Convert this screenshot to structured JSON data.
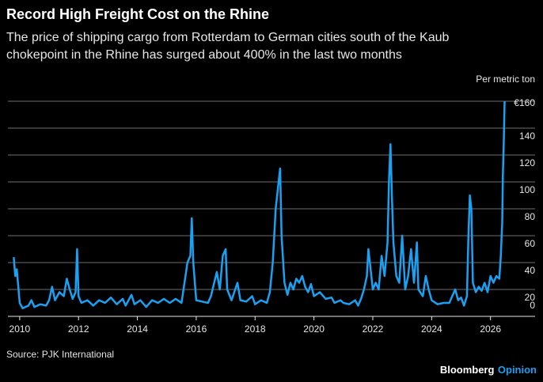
{
  "chart_data": {
    "type": "line",
    "title": "Record High Freight Cost on the Rhine",
    "subtitle": [
      "The price of shipping cargo from Rotterdam to German cities south of the Kaub",
      "chokepoint in the Rhine has surged about 400% in the last two months"
    ],
    "y_label": "Per metric ton",
    "source": "Source: PJK International",
    "brand": "Bloomberg",
    "brand_suffix": "Opinion",
    "color": "#1ba1f2",
    "grid": true,
    "xlim": [
      2009.6,
      2027.3
    ],
    "xticks": [
      2010,
      2012,
      2014,
      2016,
      2018,
      2020,
      2022,
      2024,
      2026
    ],
    "ylim": [
      0,
      160
    ],
    "yticks": [
      0,
      20,
      40,
      60,
      80,
      100,
      120,
      140,
      {
        "value": 160,
        "label": "€160"
      }
    ],
    "x": [
      2009.8,
      2009.85,
      2009.9,
      2010.0,
      2010.1,
      2010.3,
      2010.4,
      2010.5,
      2010.7,
      2010.9,
      2011.0,
      2011.1,
      2011.2,
      2011.35,
      2011.5,
      2011.6,
      2011.7,
      2011.8,
      2011.9,
      2011.95,
      2012.0,
      2012.1,
      2012.3,
      2012.5,
      2012.7,
      2012.9,
      2013.1,
      2013.3,
      2013.5,
      2013.6,
      2013.8,
      2013.9,
      2014.1,
      2014.3,
      2014.5,
      2014.7,
      2014.9,
      2015.1,
      2015.3,
      2015.5,
      2015.6,
      2015.7,
      2015.8,
      2015.85,
      2015.9,
      2016.0,
      2016.2,
      2016.4,
      2016.5,
      2016.7,
      2016.8,
      2016.9,
      2017.0,
      2017.05,
      2017.2,
      2017.4,
      2017.5,
      2017.7,
      2017.9,
      2018.0,
      2018.2,
      2018.4,
      2018.5,
      2018.6,
      2018.7,
      2018.8,
      2018.85,
      2018.9,
      2019.0,
      2019.1,
      2019.2,
      2019.3,
      2019.4,
      2019.5,
      2019.6,
      2019.7,
      2019.8,
      2019.9,
      2020.0,
      2020.2,
      2020.4,
      2020.6,
      2020.7,
      2020.9,
      2021.0,
      2021.2,
      2021.4,
      2021.5,
      2021.6,
      2021.7,
      2021.8,
      2021.85,
      2021.9,
      2022.0,
      2022.1,
      2022.2,
      2022.3,
      2022.4,
      2022.5,
      2022.55,
      2022.6,
      2022.65,
      2022.7,
      2022.8,
      2022.9,
      2023.0,
      2023.05,
      2023.1,
      2023.2,
      2023.3,
      2023.4,
      2023.5,
      2023.55,
      2023.7,
      2023.8,
      2023.9,
      2024.0,
      2024.2,
      2024.4,
      2024.6,
      2024.7,
      2024.8,
      2024.9,
      2025.0,
      2025.1,
      2025.2,
      2025.25,
      2025.3,
      2025.35,
      2025.4,
      2025.5,
      2025.6,
      2025.7,
      2025.8,
      2025.9,
      2026.0,
      2026.1,
      2026.2,
      2026.3,
      2026.35,
      2026.4,
      2026.42,
      2026.45,
      2026.48
    ],
    "values": [
      44,
      30,
      35,
      10,
      6,
      8,
      12,
      7,
      9,
      8,
      12,
      22,
      12,
      18,
      15,
      28,
      20,
      13,
      18,
      50,
      15,
      10,
      12,
      8,
      12,
      10,
      14,
      9,
      13,
      8,
      16,
      9,
      12,
      7,
      12,
      10,
      13,
      10,
      13,
      10,
      25,
      40,
      45,
      73,
      40,
      12,
      11,
      10,
      15,
      33,
      20,
      45,
      50,
      20,
      12,
      25,
      12,
      11,
      15,
      9,
      12,
      10,
      18,
      40,
      80,
      100,
      110,
      60,
      25,
      16,
      25,
      20,
      28,
      25,
      30,
      22,
      18,
      24,
      15,
      18,
      13,
      14,
      10,
      12,
      10,
      9,
      12,
      8,
      13,
      20,
      30,
      50,
      40,
      20,
      25,
      20,
      45,
      30,
      55,
      100,
      128,
      90,
      55,
      30,
      25,
      60,
      40,
      20,
      30,
      50,
      25,
      55,
      20,
      15,
      30,
      20,
      12,
      9,
      10,
      10,
      15,
      20,
      12,
      14,
      8,
      15,
      60,
      90,
      80,
      25,
      18,
      22,
      19,
      25,
      18,
      30,
      25,
      30,
      28,
      45,
      70,
      105,
      128,
      160
    ]
  }
}
